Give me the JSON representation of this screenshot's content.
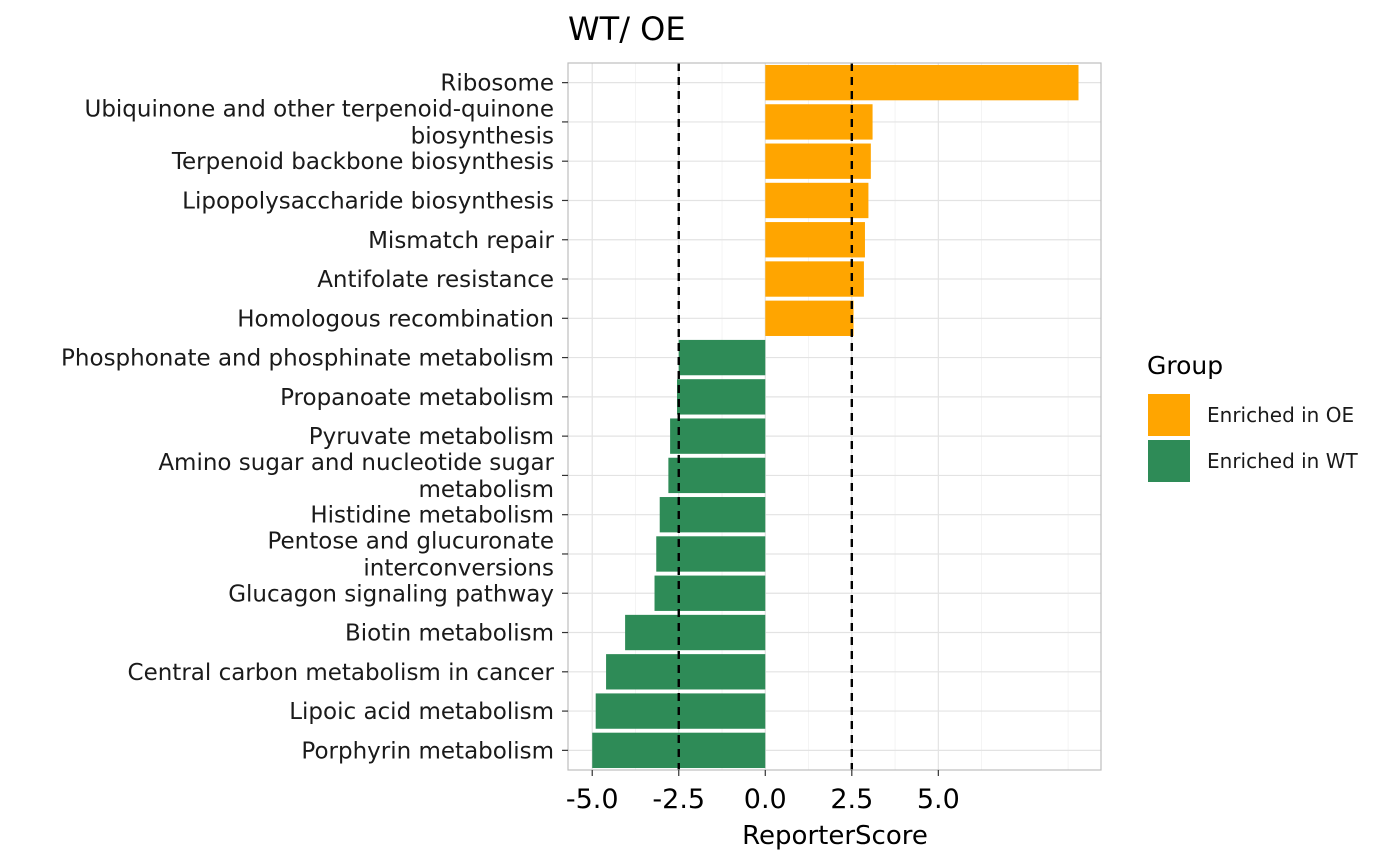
{
  "chart_data": {
    "type": "bar",
    "orientation": "horizontal",
    "title": "WT/ OE",
    "xlabel": "ReporterScore",
    "ylabel": "",
    "xlim": [
      -5.7,
      9.7
    ],
    "x_ticks": [
      -5.0,
      -2.5,
      0.0,
      2.5,
      5.0
    ],
    "x_tick_labels": [
      "-5.0",
      "-2.5",
      "0.0",
      "2.5",
      "5.0"
    ],
    "threshold_lines": [
      -2.5,
      2.5
    ],
    "grid": true,
    "legend_position": "right",
    "legend_title": "Group",
    "legend": [
      {
        "name": "Enriched in OE",
        "color": "#FFA500"
      },
      {
        "name": "Enriched in WT",
        "color": "#2E8B57"
      }
    ],
    "categories": [
      [
        "Ribosome"
      ],
      [
        "Ubiquinone and other terpenoid-quinone",
        "biosynthesis"
      ],
      [
        "Terpenoid backbone biosynthesis"
      ],
      [
        "Lipopolysaccharide biosynthesis"
      ],
      [
        "Mismatch repair"
      ],
      [
        "Antifolate resistance"
      ],
      [
        "Homologous recombination"
      ],
      [
        "Phosphonate and phosphinate metabolism"
      ],
      [
        "Propanoate metabolism"
      ],
      [
        "Pyruvate metabolism"
      ],
      [
        "Amino sugar and nucleotide sugar",
        "metabolism"
      ],
      [
        "Histidine metabolism"
      ],
      [
        "Pentose and glucuronate",
        "interconversions"
      ],
      [
        "Glucagon signaling pathway"
      ],
      [
        "Biotin metabolism"
      ],
      [
        "Central carbon metabolism in cancer"
      ],
      [
        "Lipoic acid metabolism"
      ],
      [
        "Porphyrin metabolism"
      ]
    ],
    "values": [
      9.05,
      3.1,
      3.05,
      2.98,
      2.88,
      2.85,
      2.55,
      -2.5,
      -2.55,
      -2.75,
      -2.8,
      -3.05,
      -3.15,
      -3.2,
      -4.05,
      -4.6,
      -4.9,
      -5.0
    ],
    "groups": [
      "Enriched in OE",
      "Enriched in OE",
      "Enriched in OE",
      "Enriched in OE",
      "Enriched in OE",
      "Enriched in OE",
      "Enriched in OE",
      "Enriched in WT",
      "Enriched in WT",
      "Enriched in WT",
      "Enriched in WT",
      "Enriched in WT",
      "Enriched in WT",
      "Enriched in WT",
      "Enriched in WT",
      "Enriched in WT",
      "Enriched in WT",
      "Enriched in WT"
    ]
  }
}
